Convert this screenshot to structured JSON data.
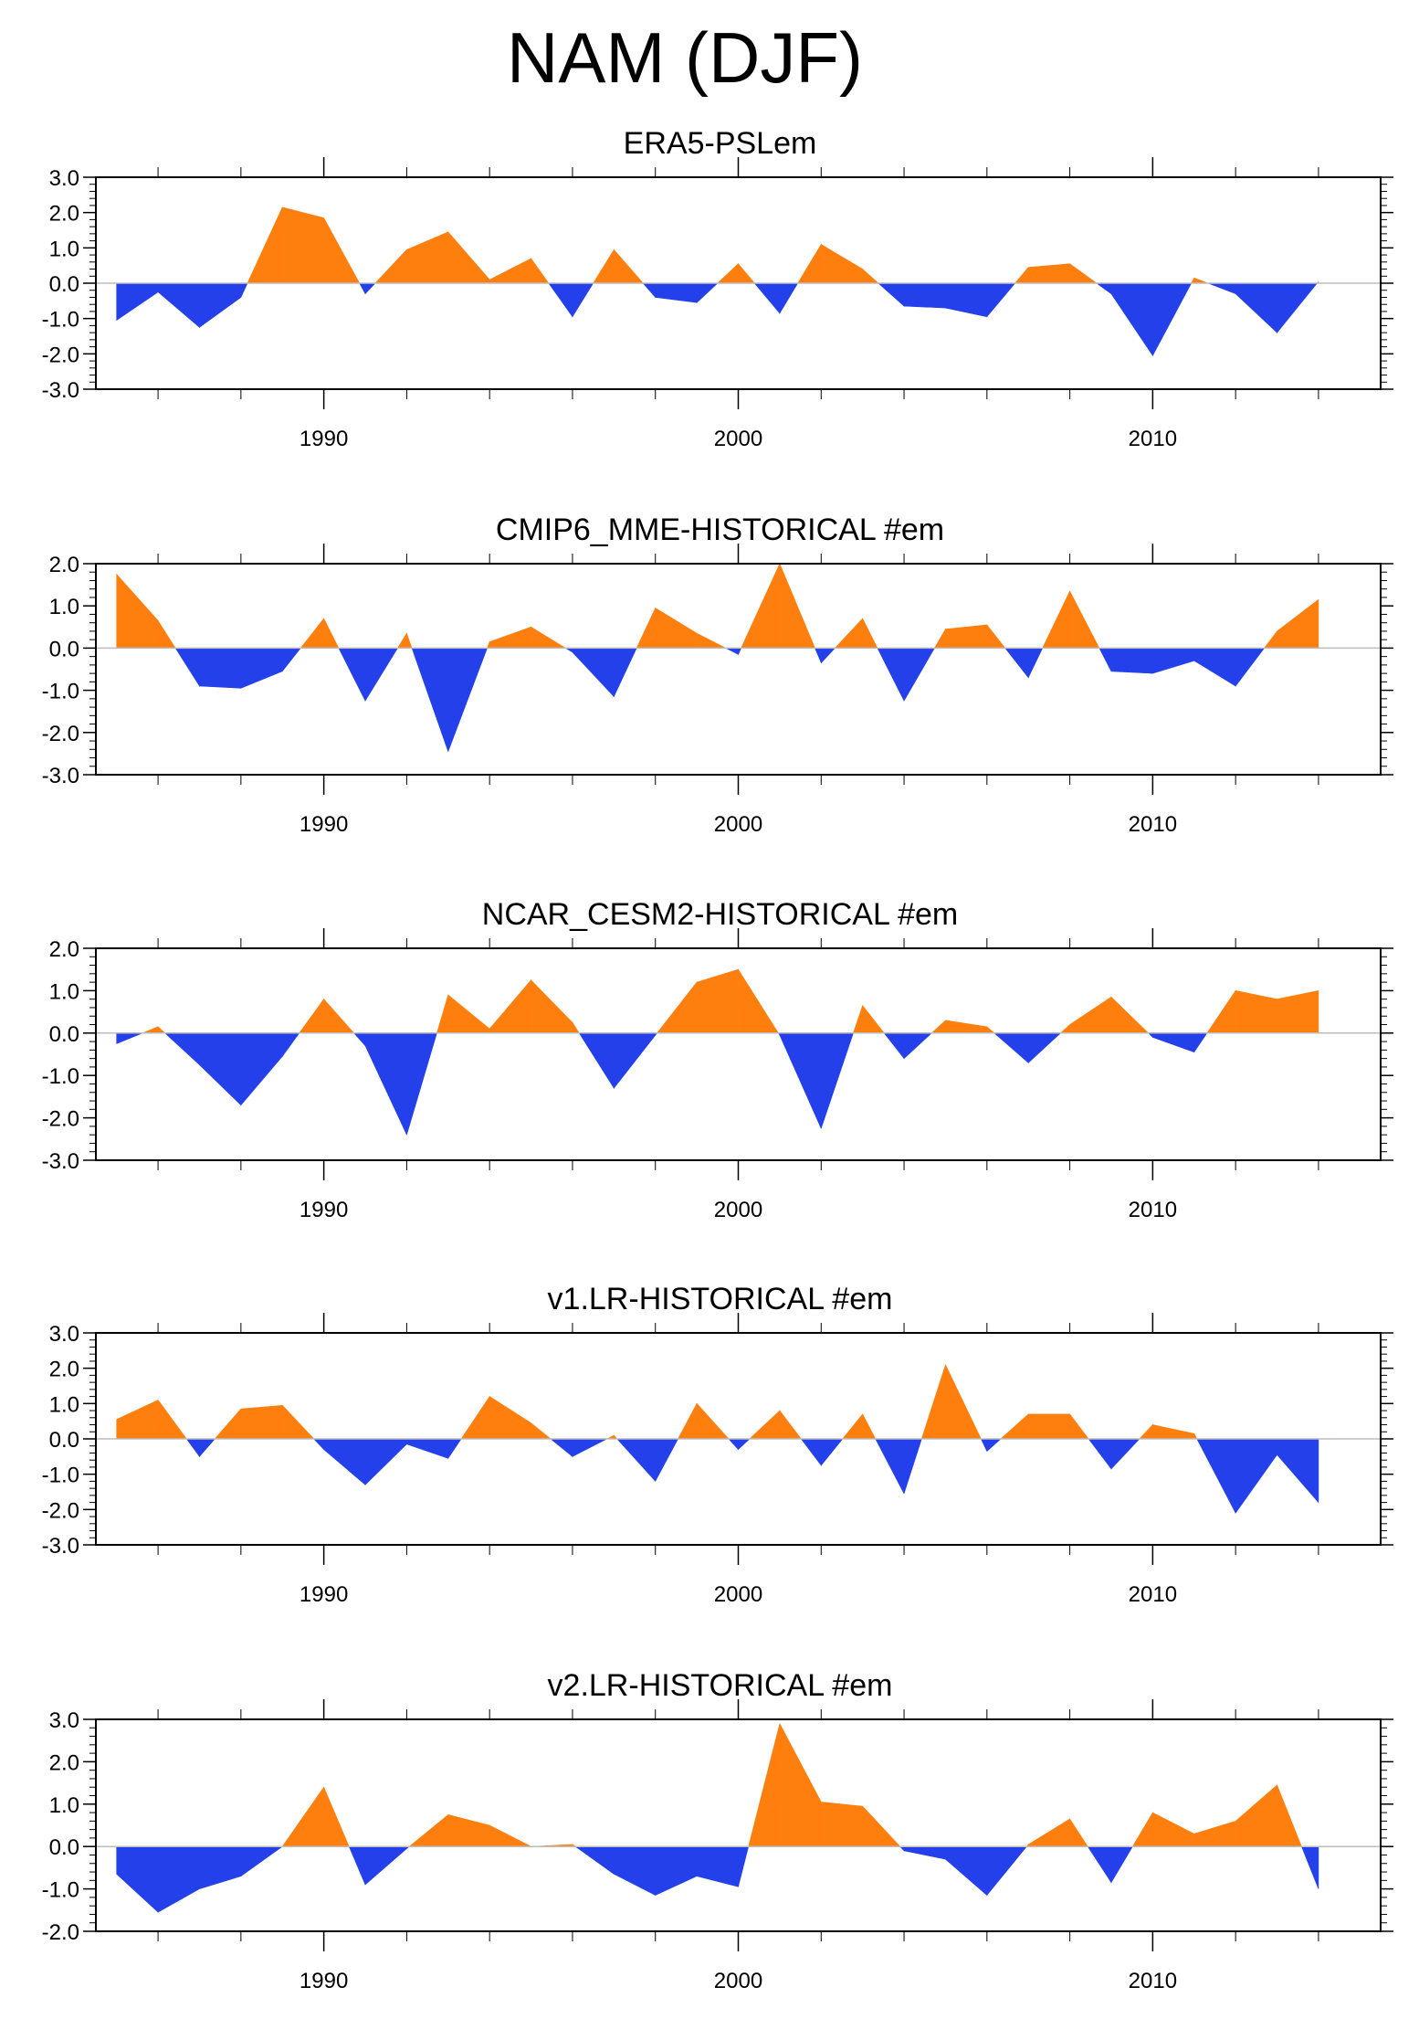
{
  "title": "NAM (DJF)",
  "colors": {
    "positive": "#ff7f0e",
    "negative": "#2440ea",
    "axis": "#000000",
    "zero_line": "#bdbdbd"
  },
  "chart_data": [
    {
      "type": "area",
      "title": "ERA5-PSLem",
      "x": [
        1985,
        1986,
        1987,
        1988,
        1989,
        1990,
        1991,
        1992,
        1993,
        1994,
        1995,
        1996,
        1997,
        1998,
        1999,
        2000,
        2001,
        2002,
        2003,
        2004,
        2005,
        2006,
        2007,
        2008,
        2009,
        2010,
        2011,
        2012,
        2013,
        2014
      ],
      "values": [
        -1.05,
        -0.25,
        -1.25,
        -0.4,
        2.15,
        1.85,
        -0.3,
        0.95,
        1.45,
        0.1,
        0.7,
        -0.95,
        0.95,
        -0.4,
        -0.55,
        0.55,
        -0.85,
        1.1,
        0.4,
        -0.65,
        -0.7,
        -0.95,
        0.45,
        0.55,
        -0.3,
        -2.05,
        0.15,
        -0.3,
        -1.4,
        0.05
      ],
      "xticks": [
        1990,
        2000,
        2010
      ],
      "xtick_labels": [
        "1990",
        "2000",
        "2010"
      ],
      "yticks": [
        -3,
        -2,
        -1,
        0,
        1,
        2,
        3
      ],
      "ytick_labels": [
        "-3.0",
        "-2.0",
        "-1.0",
        "0.0",
        "1.0",
        "2.0",
        "3.0"
      ],
      "ylim": [
        -3,
        3
      ],
      "xlim": [
        1984.5,
        2015.5
      ]
    },
    {
      "type": "area",
      "title": "CMIP6_MME-HISTORICAL  #em",
      "x": [
        1985,
        1986,
        1987,
        1988,
        1989,
        1990,
        1991,
        1992,
        1993,
        1994,
        1995,
        1996,
        1997,
        1998,
        1999,
        2000,
        2001,
        2002,
        2003,
        2004,
        2005,
        2006,
        2007,
        2008,
        2009,
        2010,
        2011,
        2012,
        2013,
        2014
      ],
      "values": [
        1.75,
        0.65,
        -0.9,
        -0.95,
        -0.55,
        0.7,
        -1.25,
        0.35,
        -2.45,
        0.15,
        0.5,
        -0.1,
        -1.15,
        0.95,
        0.35,
        -0.15,
        2.0,
        -0.35,
        0.7,
        -1.25,
        0.45,
        0.55,
        -0.7,
        1.35,
        -0.55,
        -0.6,
        -0.3,
        -0.9,
        0.4,
        1.15
      ],
      "xticks": [
        1990,
        2000,
        2010
      ],
      "xtick_labels": [
        "1990",
        "2000",
        "2010"
      ],
      "yticks": [
        -3,
        -2,
        -1,
        0,
        1,
        2
      ],
      "ytick_labels": [
        "-3.0",
        "-2.0",
        "-1.0",
        "0.0",
        "1.0",
        "2.0"
      ],
      "ylim": [
        -3,
        2
      ],
      "xlim": [
        1984.5,
        2015.5
      ]
    },
    {
      "type": "area",
      "title": "NCAR_CESM2-HISTORICAL  #em",
      "x": [
        1985,
        1986,
        1987,
        1988,
        1989,
        1990,
        1991,
        1992,
        1993,
        1994,
        1995,
        1996,
        1997,
        1998,
        1999,
        2000,
        2001,
        2002,
        2003,
        2004,
        2005,
        2006,
        2007,
        2008,
        2009,
        2010,
        2011,
        2012,
        2013,
        2014
      ],
      "values": [
        -0.25,
        0.15,
        -0.75,
        -1.7,
        -0.55,
        0.8,
        -0.3,
        -2.4,
        0.9,
        0.1,
        1.25,
        0.25,
        -1.3,
        -0.05,
        1.2,
        1.5,
        -0.05,
        -2.25,
        0.65,
        -0.6,
        0.3,
        0.15,
        -0.7,
        0.2,
        0.85,
        -0.1,
        -0.45,
        1.0,
        0.8,
        1.0
      ],
      "xticks": [
        1990,
        2000,
        2010
      ],
      "xtick_labels": [
        "1990",
        "2000",
        "2010"
      ],
      "yticks": [
        -3,
        -2,
        -1,
        0,
        1,
        2
      ],
      "ytick_labels": [
        "-3.0",
        "-2.0",
        "-1.0",
        "0.0",
        "1.0",
        "2.0"
      ],
      "ylim": [
        -3,
        2
      ],
      "xlim": [
        1984.5,
        2015.5
      ]
    },
    {
      "type": "area",
      "title": "v1.LR-HISTORICAL  #em",
      "x": [
        1985,
        1986,
        1987,
        1988,
        1989,
        1990,
        1991,
        1992,
        1993,
        1994,
        1995,
        1996,
        1997,
        1998,
        1999,
        2000,
        2001,
        2002,
        2003,
        2004,
        2005,
        2006,
        2007,
        2008,
        2009,
        2010,
        2011,
        2012,
        2013,
        2014
      ],
      "values": [
        0.55,
        1.1,
        -0.5,
        0.85,
        0.95,
        -0.3,
        -1.3,
        -0.15,
        -0.55,
        1.2,
        0.45,
        -0.5,
        0.1,
        -1.2,
        1.0,
        -0.3,
        0.8,
        -0.75,
        0.7,
        -1.55,
        2.1,
        -0.35,
        0.7,
        0.7,
        -0.85,
        0.4,
        0.15,
        -2.1,
        -0.45,
        -1.8
      ],
      "xticks": [
        1990,
        2000,
        2010
      ],
      "xtick_labels": [
        "1990",
        "2000",
        "2010"
      ],
      "yticks": [
        -3,
        -2,
        -1,
        0,
        1,
        2,
        3
      ],
      "ytick_labels": [
        "-3.0",
        "-2.0",
        "-1.0",
        "0.0",
        "1.0",
        "2.0",
        "3.0"
      ],
      "ylim": [
        -3,
        3
      ],
      "xlim": [
        1984.5,
        2015.5
      ]
    },
    {
      "type": "area",
      "title": "v2.LR-HISTORICAL  #em",
      "x": [
        1985,
        1986,
        1987,
        1988,
        1989,
        1990,
        1991,
        1992,
        1993,
        1994,
        1995,
        1996,
        1997,
        1998,
        1999,
        2000,
        2001,
        2002,
        2003,
        2004,
        2005,
        2006,
        2007,
        2008,
        2009,
        2010,
        2011,
        2012,
        2013,
        2014
      ],
      "values": [
        -0.65,
        -1.55,
        -1.0,
        -0.7,
        0.0,
        1.4,
        -0.9,
        -0.05,
        0.75,
        0.5,
        0.0,
        0.05,
        -0.65,
        -1.15,
        -0.7,
        -0.95,
        2.9,
        1.05,
        0.95,
        -0.1,
        -0.3,
        -1.15,
        0.05,
        0.65,
        -0.85,
        0.8,
        0.3,
        0.6,
        1.45,
        -1.0
      ],
      "xticks": [
        1990,
        2000,
        2010
      ],
      "xtick_labels": [
        "1990",
        "2000",
        "2010"
      ],
      "yticks": [
        -2,
        -1,
        0,
        1,
        2,
        3
      ],
      "ytick_labels": [
        "-2.0",
        "-1.0",
        "0.0",
        "1.0",
        "2.0",
        "3.0"
      ],
      "ylim": [
        -2,
        3
      ],
      "xlim": [
        1984.5,
        2015.5
      ]
    }
  ]
}
